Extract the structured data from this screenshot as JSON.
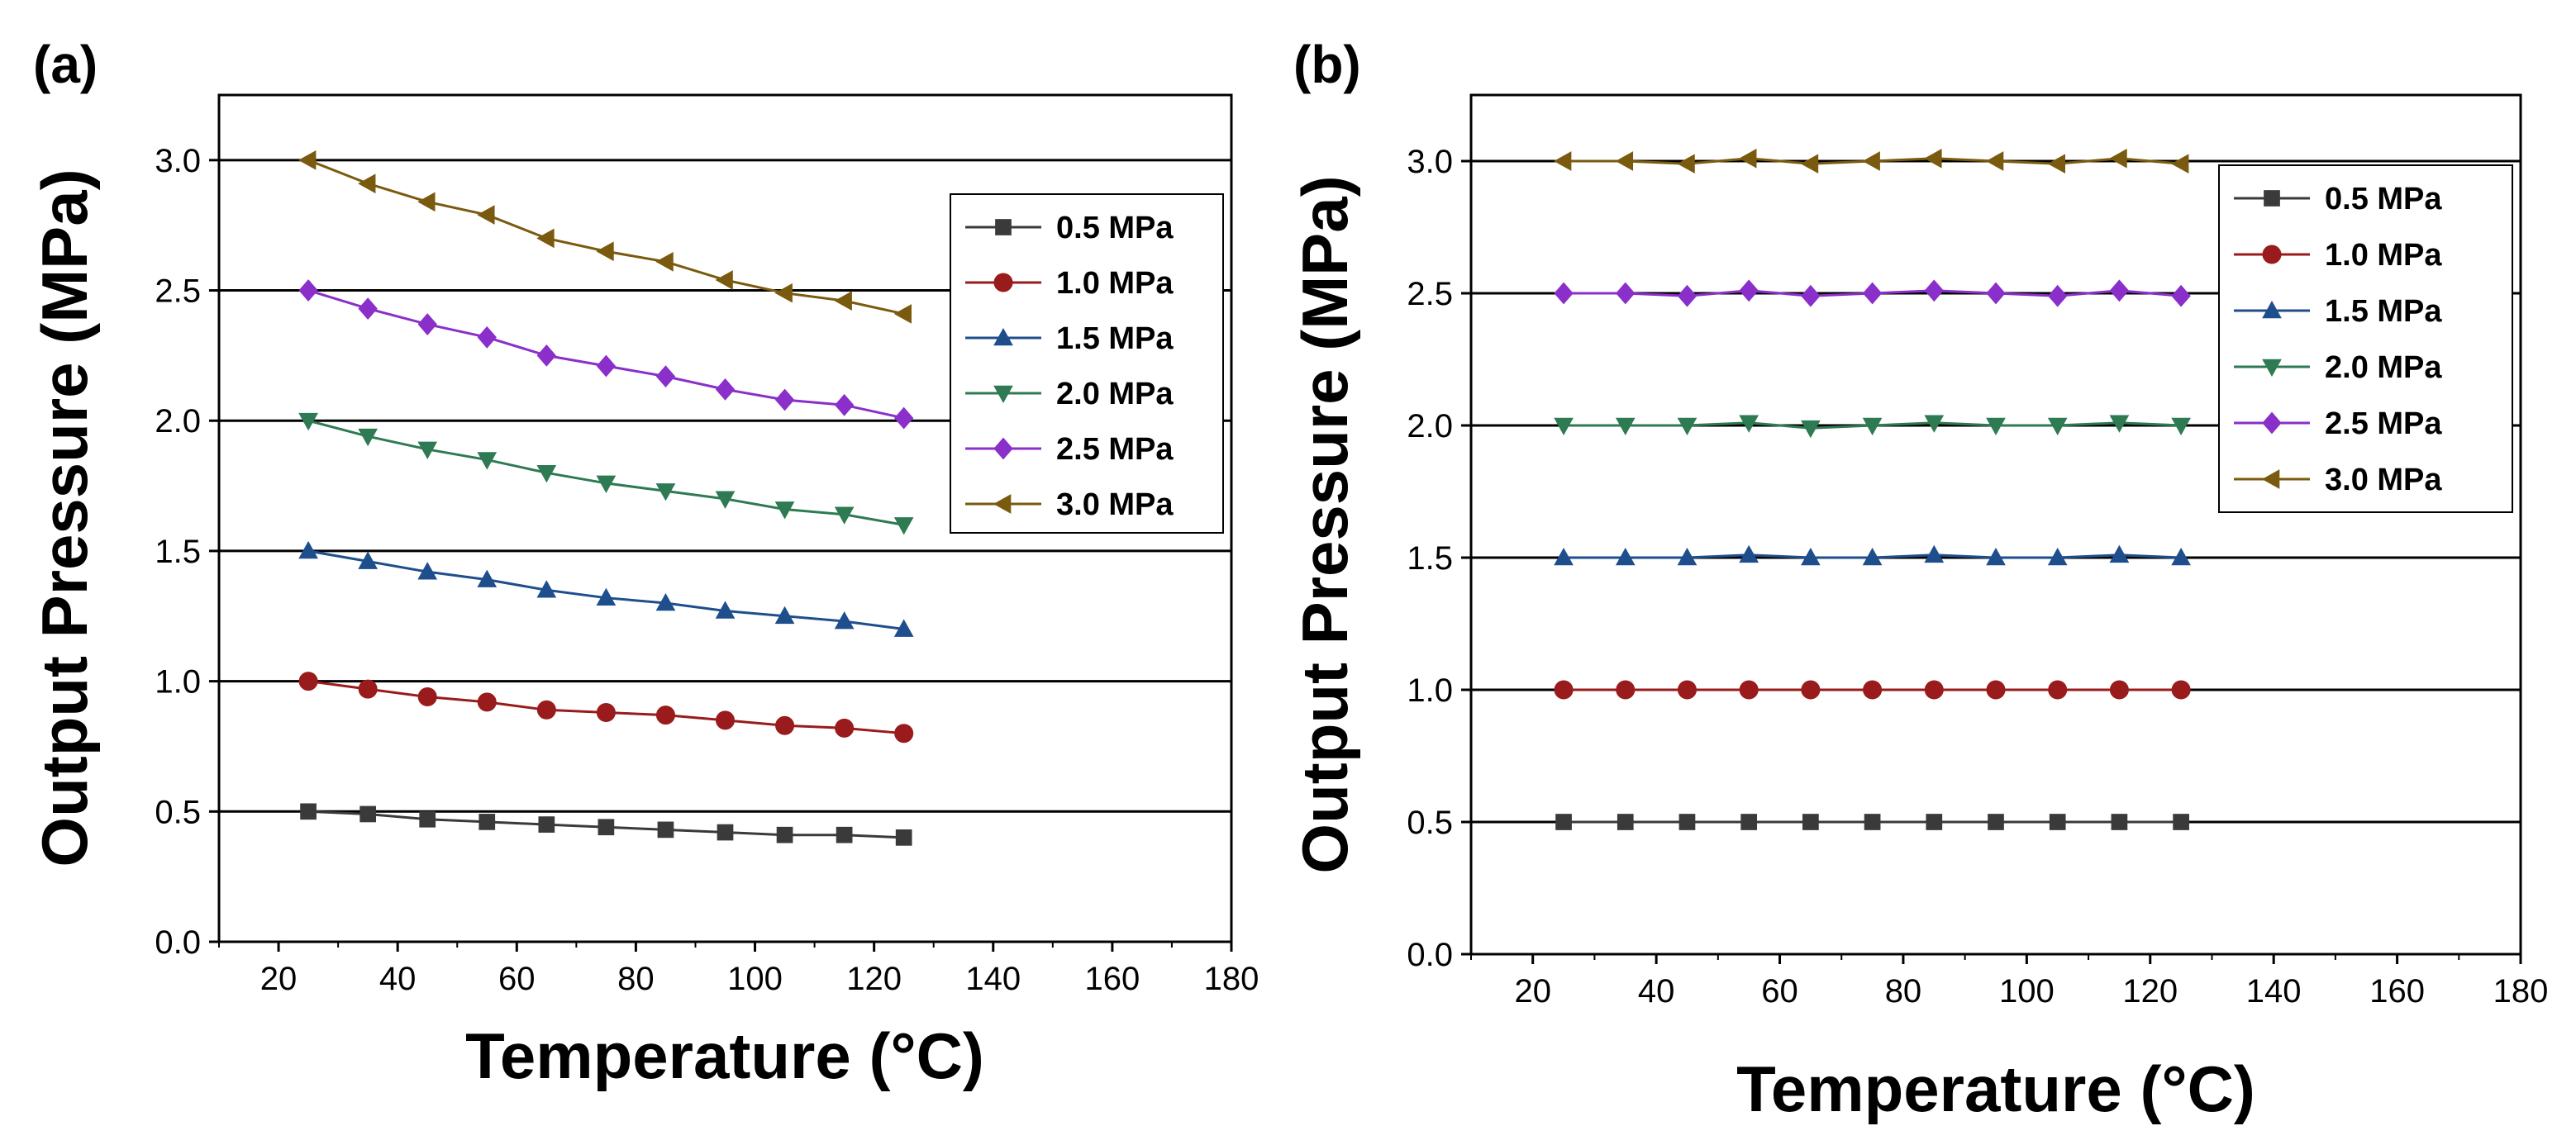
{
  "chart_data": [
    {
      "type": "line",
      "panel_label": "(a)",
      "xlabel": "Temperature (°C)",
      "ylabel": "Output Pressure (MPa)",
      "xlim": [
        10,
        180
      ],
      "ylim": [
        0,
        3.25
      ],
      "xticks": [
        20,
        40,
        60,
        80,
        100,
        120,
        140,
        160,
        180
      ],
      "yticks": [
        0.0,
        0.5,
        1.0,
        1.5,
        2.0,
        2.5,
        3.0
      ],
      "ytick_labels": [
        "0.0",
        "0.5",
        "1.0",
        "1.5",
        "2.0",
        "2.5",
        "3.0"
      ],
      "grid_horizontal": true,
      "legend_position": "right",
      "x": [
        25,
        35,
        45,
        55,
        65,
        75,
        85,
        95,
        105,
        115,
        125
      ],
      "series": [
        {
          "name": "0.5 MPa",
          "marker": "square",
          "color": "#3a3a3a",
          "values": [
            0.5,
            0.49,
            0.47,
            0.46,
            0.45,
            0.44,
            0.43,
            0.42,
            0.41,
            0.41,
            0.4
          ]
        },
        {
          "name": "1.0 MPa",
          "marker": "circle",
          "color": "#9a1b1b",
          "values": [
            1.0,
            0.97,
            0.94,
            0.92,
            0.89,
            0.88,
            0.87,
            0.85,
            0.83,
            0.82,
            0.8
          ]
        },
        {
          "name": "1.5 MPa",
          "marker": "triangle-up",
          "color": "#1f4e8c",
          "values": [
            1.5,
            1.46,
            1.42,
            1.39,
            1.35,
            1.32,
            1.3,
            1.27,
            1.25,
            1.23,
            1.2
          ]
        },
        {
          "name": "2.0 MPa",
          "marker": "triangle-down",
          "color": "#2e7a52",
          "values": [
            2.0,
            1.94,
            1.89,
            1.85,
            1.8,
            1.76,
            1.73,
            1.7,
            1.66,
            1.64,
            1.6
          ]
        },
        {
          "name": "2.5 MPa",
          "marker": "diamond",
          "color": "#8a2fc9",
          "values": [
            2.5,
            2.43,
            2.37,
            2.32,
            2.25,
            2.21,
            2.17,
            2.12,
            2.08,
            2.06,
            2.01
          ]
        },
        {
          "name": "3.0 MPa",
          "marker": "triangle-left",
          "color": "#7a5a0e",
          "values": [
            3.0,
            2.91,
            2.84,
            2.79,
            2.7,
            2.65,
            2.61,
            2.54,
            2.49,
            2.46,
            2.41
          ]
        }
      ]
    },
    {
      "type": "line",
      "panel_label": "(b)",
      "xlabel": "Temperature (°C)",
      "ylabel": "Output Pressure (MPa)",
      "xlim": [
        10,
        180
      ],
      "ylim": [
        0,
        3.25
      ],
      "xticks": [
        20,
        40,
        60,
        80,
        100,
        120,
        140,
        160,
        180
      ],
      "yticks": [
        0.0,
        0.5,
        1.0,
        1.5,
        2.0,
        2.5,
        3.0
      ],
      "ytick_labels": [
        "0.0",
        "0.5",
        "1.0",
        "1.5",
        "2.0",
        "2.5",
        "3.0"
      ],
      "grid_horizontal": true,
      "legend_position": "top-right",
      "x": [
        25,
        35,
        45,
        55,
        65,
        75,
        85,
        95,
        105,
        115,
        125
      ],
      "series": [
        {
          "name": "0.5 MPa",
          "marker": "square",
          "color": "#3a3a3a",
          "values": [
            0.5,
            0.5,
            0.5,
            0.5,
            0.5,
            0.5,
            0.5,
            0.5,
            0.5,
            0.5,
            0.5
          ]
        },
        {
          "name": "1.0 MPa",
          "marker": "circle",
          "color": "#9a1b1b",
          "values": [
            1.0,
            1.0,
            1.0,
            1.0,
            1.0,
            1.0,
            1.0,
            1.0,
            1.0,
            1.0,
            1.0
          ]
        },
        {
          "name": "1.5 MPa",
          "marker": "triangle-up",
          "color": "#1f4e8c",
          "values": [
            1.5,
            1.5,
            1.5,
            1.51,
            1.5,
            1.5,
            1.51,
            1.5,
            1.5,
            1.51,
            1.5
          ]
        },
        {
          "name": "2.0 MPa",
          "marker": "triangle-down",
          "color": "#2e7a52",
          "values": [
            2.0,
            2.0,
            2.0,
            2.01,
            1.99,
            2.0,
            2.01,
            2.0,
            2.0,
            2.01,
            2.0
          ]
        },
        {
          "name": "2.5 MPa",
          "marker": "diamond",
          "color": "#8a2fc9",
          "values": [
            2.5,
            2.5,
            2.49,
            2.51,
            2.49,
            2.5,
            2.51,
            2.5,
            2.49,
            2.51,
            2.49
          ]
        },
        {
          "name": "3.0 MPa",
          "marker": "triangle-left",
          "color": "#7a5a0e",
          "values": [
            3.0,
            3.0,
            2.99,
            3.01,
            2.99,
            3.0,
            3.01,
            3.0,
            2.99,
            3.01,
            2.99
          ]
        }
      ]
    }
  ]
}
